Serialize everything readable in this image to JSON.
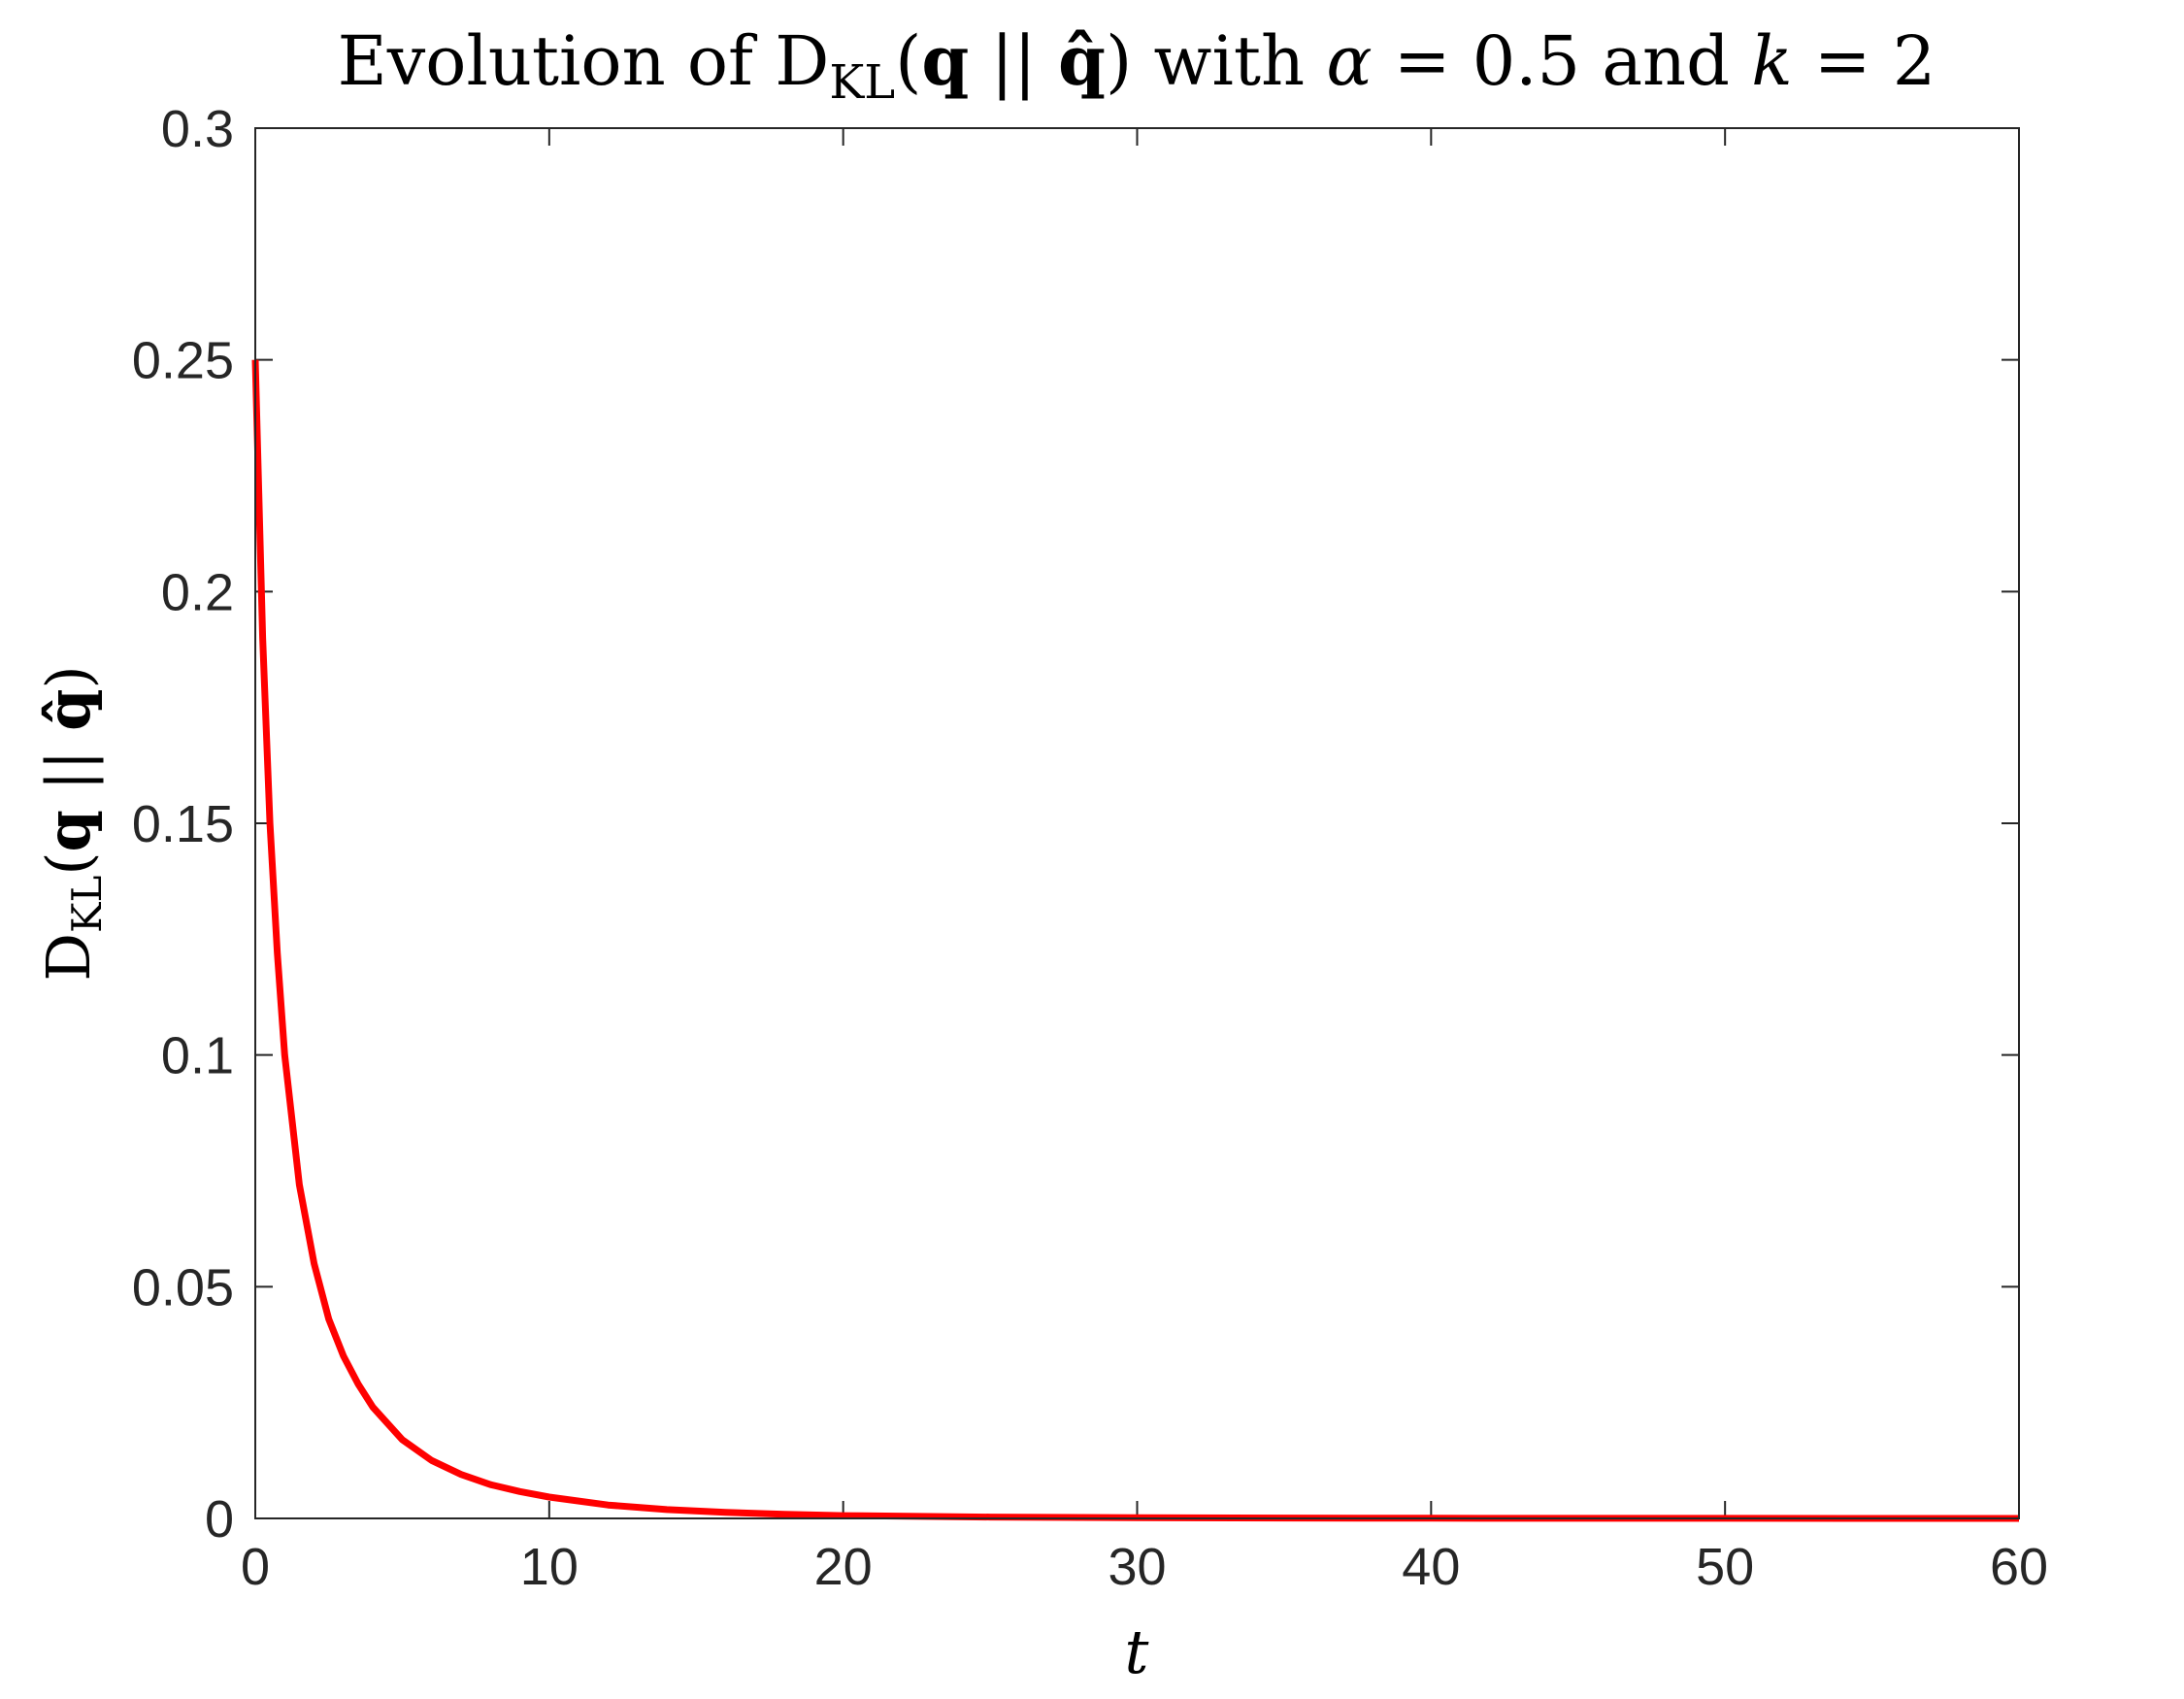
{
  "chart_data": {
    "type": "line",
    "title": {
      "prefix": "Evolution of ",
      "d": "D",
      "kl": "KL",
      "open": "(",
      "q": "q",
      "sep": " || ",
      "qhat": "q̂",
      "close": ")",
      "mid": " with ",
      "alpha": "α",
      "alpha_eq": " = 0.5 and ",
      "k": "k",
      "k_eq": " = 2"
    },
    "xlabel": "t",
    "ylabel": {
      "d": "D",
      "kl": "KL",
      "open": "(",
      "q": "q",
      "sep": " || ",
      "qhat": "q̂",
      "close": ")"
    },
    "xlim": [
      0,
      60
    ],
    "ylim": [
      0,
      0.3
    ],
    "x_ticks": [
      0,
      10,
      20,
      30,
      40,
      50,
      60
    ],
    "x_tick_labels": [
      "0",
      "10",
      "20",
      "30",
      "40",
      "50",
      "60"
    ],
    "y_ticks": [
      0,
      0.05,
      0.1,
      0.15,
      0.2,
      0.25,
      0.3
    ],
    "y_tick_labels": [
      "0",
      "0.05",
      "0.1",
      "0.15",
      "0.2",
      "0.25",
      "0.3"
    ],
    "grid": false,
    "legend": "none",
    "series": [
      {
        "color": "#ff0000",
        "x": [
          0,
          0.25,
          0.5,
          0.75,
          1,
          1.5,
          2,
          2.5,
          3,
          3.5,
          4,
          5,
          6,
          7,
          8,
          9,
          10,
          12,
          14,
          16,
          18,
          20,
          25,
          30,
          35,
          40,
          45,
          50,
          55,
          60
        ],
        "y": [
          0.25,
          0.19,
          0.15,
          0.122,
          0.1,
          0.072,
          0.055,
          0.043,
          0.035,
          0.029,
          0.024,
          0.017,
          0.0125,
          0.0095,
          0.0073,
          0.0058,
          0.0046,
          0.0029,
          0.0019,
          0.0013,
          0.0009,
          0.0006,
          0.0003,
          0.00015,
          8e-05,
          5e-05,
          3e-05,
          2e-05,
          1e-05,
          5e-06
        ]
      }
    ]
  }
}
